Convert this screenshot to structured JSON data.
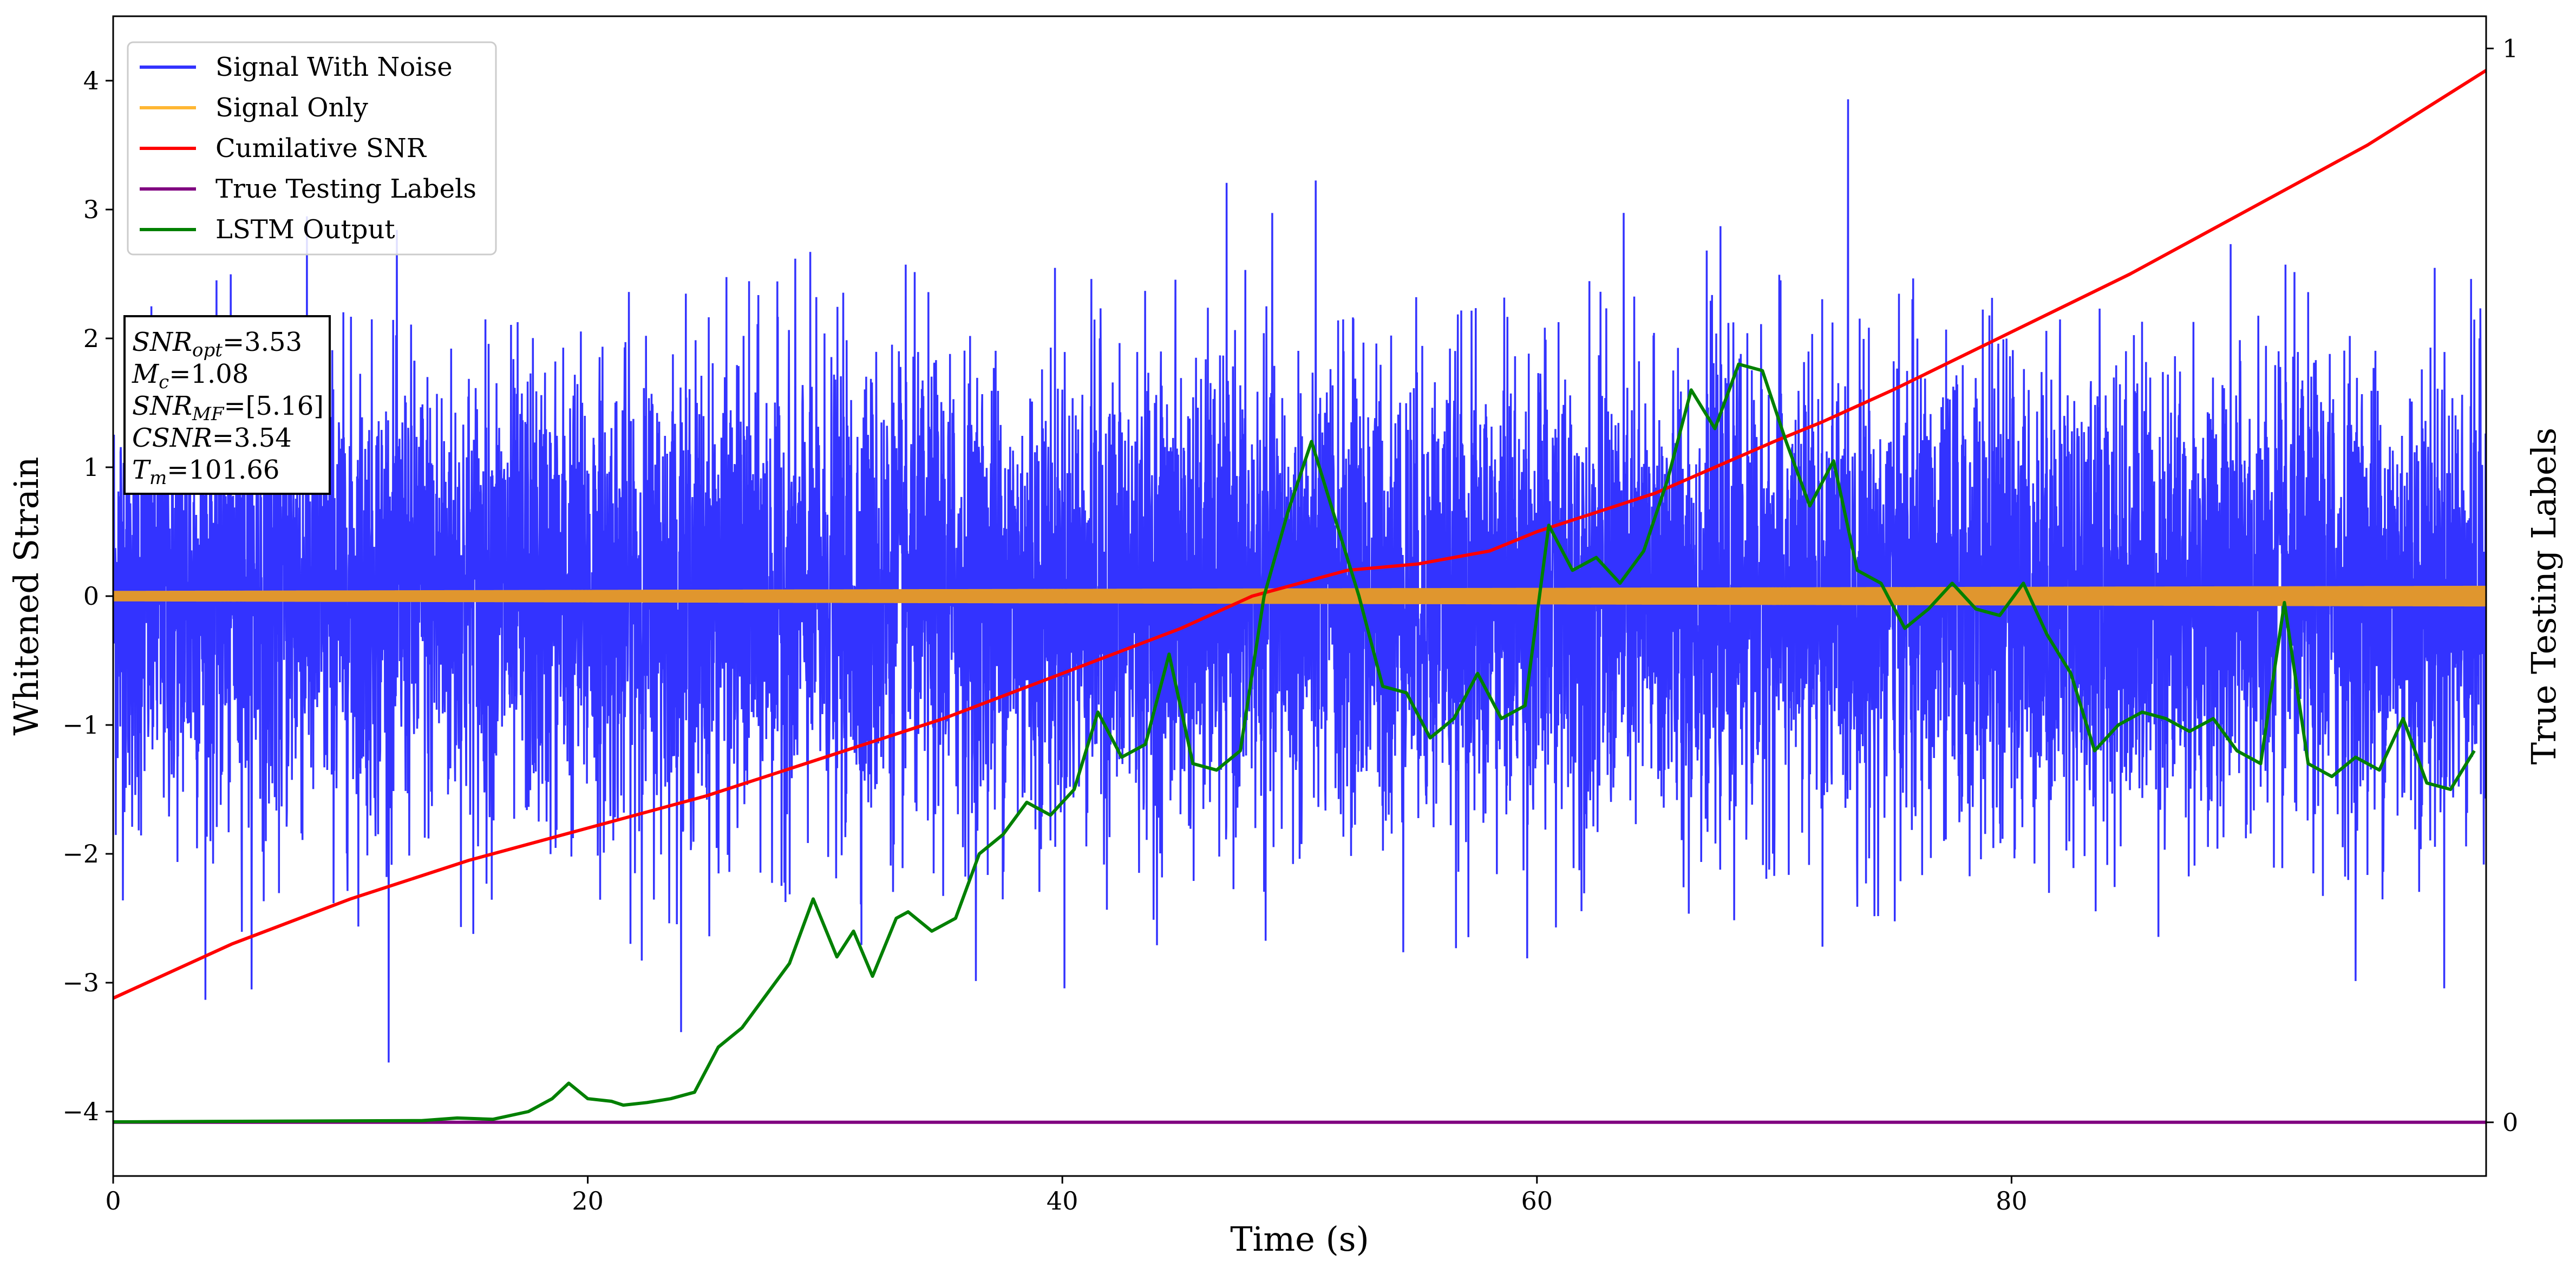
{
  "chart_data": {
    "type": "line",
    "title": "",
    "xlabel": "Time (s)",
    "ylabel_left": "Whitened Strain",
    "ylabel_right": "True Testing Labels",
    "xlim": [
      0,
      100
    ],
    "ylim_left": [
      -4.5,
      4.5
    ],
    "ylim_right": [
      -0.05,
      1.03
    ],
    "xticks": [
      0,
      20,
      40,
      60,
      80
    ],
    "yticks_left": [
      -4,
      -3,
      -2,
      -1,
      0,
      1,
      2,
      3,
      4
    ],
    "yticks_right": [
      0,
      1
    ],
    "grid": false,
    "legend_position": "top-left",
    "legend": [
      {
        "name": "Signal With Noise",
        "color": "#3333ff"
      },
      {
        "name": "Signal Only",
        "color": "#ffb733"
      },
      {
        "name": "Cumilative SNR",
        "color": "#ff0000"
      },
      {
        "name": "True Testing Labels",
        "color": "#800080"
      },
      {
        "name": "LSTM Output",
        "color": "#008000"
      }
    ],
    "annotation": [
      {
        "base": "SNR",
        "sub": "opt",
        "value": "=3.53"
      },
      {
        "base": "M",
        "sub": "c",
        "value": "=1.08"
      },
      {
        "base": "SNR",
        "sub": "MF",
        "value": "=[5.16]"
      },
      {
        "base": "CSNR",
        "sub": "",
        "value": "=3.54"
      },
      {
        "base": "T",
        "sub": "m",
        "value": "=101.66"
      }
    ],
    "series": [
      {
        "name": "Signal With Noise",
        "axis": "left",
        "color": "#3333ff",
        "note_values": "dense Gaussian-like noise spanning roughly -3.8 to 4.1",
        "y_typical_min": -2.0,
        "y_typical_max": 2.0,
        "y_extreme_min": -3.8,
        "y_extreme_max": 4.1
      },
      {
        "name": "Signal Only",
        "axis": "left",
        "color": "#ffb733",
        "amplitude_start": 0.04,
        "amplitude_end": 0.08
      },
      {
        "name": "Cumilative SNR",
        "axis": "left",
        "color": "#ff0000",
        "x": [
          0,
          5,
          10,
          15,
          20,
          25,
          30,
          35,
          40,
          45,
          48,
          50,
          52,
          55,
          58,
          60,
          65,
          70,
          72,
          75,
          80,
          85,
          90,
          95,
          100
        ],
        "y": [
          -3.12,
          -2.7,
          -2.35,
          -2.05,
          -1.8,
          -1.55,
          -1.25,
          -0.95,
          -0.6,
          -0.25,
          0.0,
          0.1,
          0.2,
          0.25,
          0.35,
          0.5,
          0.8,
          1.2,
          1.35,
          1.6,
          2.05,
          2.5,
          3.0,
          3.5,
          4.08
        ]
      },
      {
        "name": "True Testing Labels",
        "axis": "right",
        "color": "#800080",
        "x": [
          0,
          100
        ],
        "y": [
          0,
          0
        ]
      },
      {
        "name": "LSTM Output",
        "axis": "left",
        "color": "#008000",
        "x": [
          0,
          13,
          14.5,
          16,
          17.5,
          18.5,
          19.2,
          20,
          21,
          21.5,
          22.5,
          23.5,
          24.5,
          25.5,
          26.5,
          27.5,
          28.5,
          29.5,
          30.5,
          31.2,
          32,
          33,
          33.5,
          34.5,
          35.5,
          36.5,
          37.5,
          38.5,
          39.5,
          40.5,
          41.5,
          42.5,
          43.5,
          44.5,
          45.5,
          46.5,
          47.5,
          48.5,
          49.5,
          50.5,
          51.5,
          52.5,
          53.5,
          54.5,
          55.5,
          56.5,
          57.5,
          58.5,
          59.5,
          60.5,
          61.5,
          62.5,
          63.5,
          64.5,
          65.5,
          66.5,
          67.5,
          68.5,
          69.5,
          70.5,
          71.5,
          72.5,
          73.5,
          74.5,
          75.5,
          76.5,
          77.5,
          78.5,
          79.5,
          80.5,
          81.5,
          82.5,
          83.5,
          84.5,
          85.5,
          86.5,
          87.5,
          88.5,
          89.5,
          90.5,
          91.5,
          92.5,
          93.5,
          94.5,
          95.5,
          96.5,
          97.5,
          98.5,
          99.5
        ],
        "y": [
          -4.08,
          -4.07,
          -4.05,
          -4.06,
          -4.0,
          -3.9,
          -3.78,
          -3.9,
          -3.92,
          -3.95,
          -3.93,
          -3.9,
          -3.85,
          -3.5,
          -3.35,
          -3.1,
          -2.85,
          -2.35,
          -2.8,
          -2.6,
          -2.95,
          -2.5,
          -2.45,
          -2.6,
          -2.5,
          -2.0,
          -1.85,
          -1.6,
          -1.7,
          -1.5,
          -0.9,
          -1.25,
          -1.15,
          -0.45,
          -1.3,
          -1.35,
          -1.2,
          0.0,
          0.65,
          1.2,
          0.6,
          0.0,
          -0.7,
          -0.75,
          -1.1,
          -0.95,
          -0.6,
          -0.95,
          -0.85,
          0.55,
          0.2,
          0.3,
          0.1,
          0.35,
          0.9,
          1.6,
          1.3,
          1.8,
          1.75,
          1.2,
          0.7,
          1.05,
          0.2,
          0.1,
          -0.25,
          -0.1,
          0.1,
          -0.1,
          -0.15,
          0.1,
          -0.3,
          -0.6,
          -1.2,
          -1.0,
          -0.9,
          -0.95,
          -1.05,
          -0.95,
          -1.2,
          -1.3,
          -0.05,
          -1.3,
          -1.4,
          -1.25,
          -1.35,
          -0.95,
          -1.45,
          -1.5,
          -1.2
        ]
      }
    ]
  }
}
